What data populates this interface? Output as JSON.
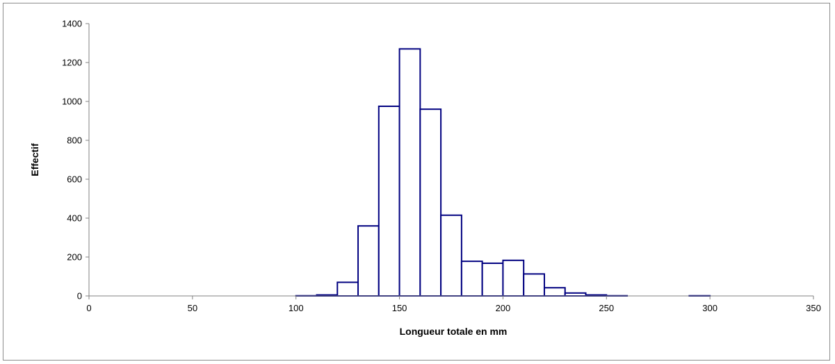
{
  "chart_data": {
    "type": "bar",
    "title": "",
    "xlabel": "Longueur totale en mm",
    "ylabel": "Effectif",
    "xlim": [
      0,
      350
    ],
    "ylim": [
      0,
      1400
    ],
    "x_ticks": [
      0,
      50,
      100,
      150,
      200,
      250,
      300,
      350
    ],
    "y_ticks": [
      0,
      200,
      400,
      600,
      800,
      1000,
      1200,
      1400
    ],
    "grid": false,
    "legend": "none",
    "bin_width": 10,
    "bins": [
      {
        "start": 50,
        "value": 0
      },
      {
        "start": 60,
        "value": 0
      },
      {
        "start": 70,
        "value": 0
      },
      {
        "start": 80,
        "value": 0
      },
      {
        "start": 90,
        "value": 0
      },
      {
        "start": 100,
        "value": 1
      },
      {
        "start": 110,
        "value": 5
      },
      {
        "start": 120,
        "value": 70
      },
      {
        "start": 130,
        "value": 360
      },
      {
        "start": 140,
        "value": 975
      },
      {
        "start": 150,
        "value": 1270
      },
      {
        "start": 160,
        "value": 960
      },
      {
        "start": 170,
        "value": 415
      },
      {
        "start": 180,
        "value": 178
      },
      {
        "start": 190,
        "value": 168
      },
      {
        "start": 200,
        "value": 183
      },
      {
        "start": 210,
        "value": 113
      },
      {
        "start": 220,
        "value": 42
      },
      {
        "start": 230,
        "value": 15
      },
      {
        "start": 240,
        "value": 5
      },
      {
        "start": 250,
        "value": 1
      },
      {
        "start": 260,
        "value": 0
      },
      {
        "start": 270,
        "value": 0
      },
      {
        "start": 280,
        "value": 0
      },
      {
        "start": 290,
        "value": 1
      }
    ],
    "colors": {
      "bar_stroke": "#000080",
      "bar_fill": "#ffffff",
      "axis": "#808080",
      "frame": "#8c8c8c"
    }
  }
}
